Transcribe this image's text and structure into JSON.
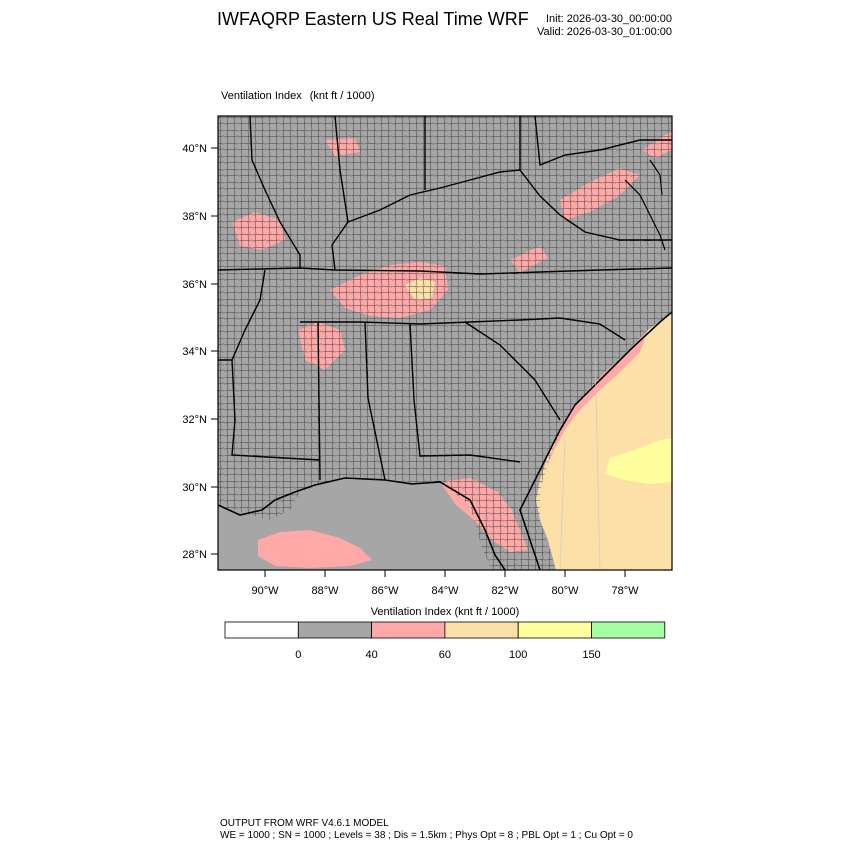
{
  "title": "IWFAQRP Eastern US Real Time WRF",
  "init_line": "Init: 2026-03-30_00:00:00",
  "valid_line": "Valid: 2026-03-30_01:00:00",
  "field": {
    "name": "Ventilation Index",
    "units": "(knt ft / 1000)"
  },
  "map": {
    "lat_ticks": [
      "40°N",
      "38°N",
      "36°N",
      "34°N",
      "32°N",
      "30°N",
      "28°N"
    ],
    "lon_ticks": [
      "90°W",
      "88°W",
      "86°W",
      "84°W",
      "82°W",
      "80°W",
      "78°W"
    ]
  },
  "colorbar": {
    "title": "Ventilation Index  (knt ft / 1000)",
    "colors": [
      "#ffffff",
      "#a6a6a6",
      "#ffa8a8",
      "#fde0a8",
      "#ffff9e",
      "#a5ffa5"
    ],
    "labels": [
      "0",
      "40",
      "60",
      "100",
      "150"
    ]
  },
  "footer": {
    "line1": "OUTPUT FROM WRF V4.6.1 MODEL",
    "line2": "WE = 1000 ; SN = 1000 ; Levels = 38 ; Dis = 1.5km ; Phys Opt = 8 ; PBL Opt = 1 ; Cu Opt = 0"
  }
}
